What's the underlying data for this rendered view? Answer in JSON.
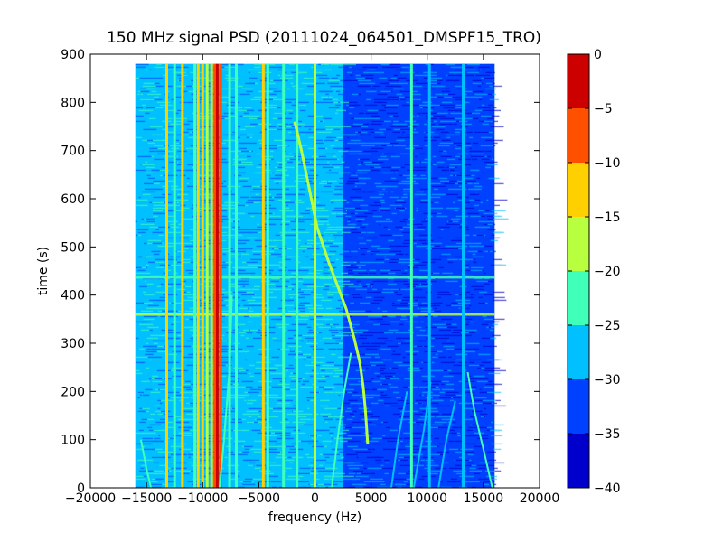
{
  "chart_data": {
    "type": "heatmap",
    "title": "150 MHz signal PSD (20111024_064501_DMSPF15_TRO)",
    "xlabel": "frequency (Hz)",
    "ylabel": "time (s)",
    "xlim": [
      -20000,
      20000
    ],
    "ylim": [
      0,
      900
    ],
    "x_ticks": [
      -20000,
      -15000,
      -10000,
      -5000,
      0,
      5000,
      10000,
      15000,
      20000
    ],
    "y_ticks": [
      0,
      100,
      200,
      300,
      400,
      500,
      600,
      700,
      800,
      900
    ],
    "data_extent": {
      "x": [
        -16000,
        16000
      ],
      "y": [
        0,
        880
      ]
    },
    "colorbar": {
      "colormap": "jet",
      "levels": [
        -40,
        -35,
        -30,
        -25,
        -20,
        -15,
        -10,
        -5,
        0
      ],
      "ticks": [
        0,
        -5,
        -10,
        -15,
        -20,
        -25,
        -30,
        -35,
        -40
      ],
      "colors": [
        "#0000cd",
        "#0040ff",
        "#00c0ff",
        "#40ffb8",
        "#b8ff40",
        "#ffd000",
        "#ff5000",
        "#cd0000"
      ]
    },
    "background": {
      "left_region_db": -27,
      "right_region_db": -33,
      "transition_hz": 2500
    },
    "vertical_lines": [
      {
        "freq_hz": -13200,
        "db": -12
      },
      {
        "freq_hz": -12500,
        "db": -22
      },
      {
        "freq_hz": -11800,
        "db": -12
      },
      {
        "freq_hz": -10700,
        "db": -22
      },
      {
        "freq_hz": -10400,
        "db": -13
      },
      {
        "freq_hz": -10000,
        "db": -12
      },
      {
        "freq_hz": -9600,
        "db": -20
      },
      {
        "freq_hz": -9200,
        "db": -12
      },
      {
        "freq_hz": -8900,
        "db": -6
      },
      {
        "freq_hz": -8700,
        "db": -2
      },
      {
        "freq_hz": -8400,
        "db": -10
      },
      {
        "freq_hz": -7600,
        "db": -22
      },
      {
        "freq_hz": -7000,
        "db": -22
      },
      {
        "freq_hz": -4600,
        "db": -12
      },
      {
        "freq_hz": -4200,
        "db": -22
      },
      {
        "freq_hz": -2800,
        "db": -22
      },
      {
        "freq_hz": -1600,
        "db": -24
      },
      {
        "freq_hz": 0,
        "db": -20
      },
      {
        "freq_hz": 8600,
        "db": -22
      },
      {
        "freq_hz": 10200,
        "db": -27
      },
      {
        "freq_hz": 13200,
        "db": -27
      }
    ],
    "horizontal_bands": [
      {
        "time_s": 360,
        "db": -17
      },
      {
        "time_s": 437,
        "db": -22
      }
    ],
    "doppler_track": {
      "db": -18,
      "points": [
        [
          -1800,
          760
        ],
        [
          -1200,
          700
        ],
        [
          -500,
          620
        ],
        [
          200,
          540
        ],
        [
          1200,
          470
        ],
        [
          2000,
          420
        ],
        [
          2800,
          370
        ],
        [
          3500,
          310
        ],
        [
          4000,
          260
        ],
        [
          4300,
          210
        ],
        [
          4500,
          160
        ],
        [
          4700,
          90
        ]
      ]
    },
    "faint_arcs": [
      {
        "db": -22,
        "points": [
          [
            -8500,
            0
          ],
          [
            -8100,
            100
          ],
          [
            -7600,
            250
          ],
          [
            -7400,
            400
          ]
        ]
      },
      {
        "db": -22,
        "points": [
          [
            -15500,
            100
          ],
          [
            -15000,
            40
          ],
          [
            -14600,
            0
          ]
        ]
      },
      {
        "db": -24,
        "points": [
          [
            1500,
            0
          ],
          [
            2000,
            100
          ],
          [
            2600,
            200
          ],
          [
            3200,
            280
          ]
        ]
      },
      {
        "db": -27,
        "points": [
          [
            6800,
            0
          ],
          [
            7400,
            100
          ],
          [
            8200,
            200
          ]
        ]
      },
      {
        "db": -27,
        "points": [
          [
            8800,
            0
          ],
          [
            9700,
            120
          ],
          [
            10300,
            220
          ]
        ]
      },
      {
        "db": -27,
        "points": [
          [
            11000,
            0
          ],
          [
            11700,
            100
          ],
          [
            12500,
            180
          ]
        ]
      },
      {
        "db": -22,
        "points": [
          [
            15800,
            0
          ],
          [
            15000,
            80
          ],
          [
            14200,
            160
          ],
          [
            13600,
            240
          ]
        ]
      }
    ]
  }
}
